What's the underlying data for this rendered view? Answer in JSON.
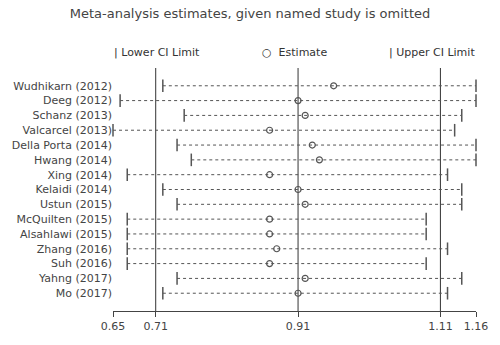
{
  "chart_data": {
    "type": "forest",
    "title": "Meta-analysis estimates, given named study is omitted",
    "categories": [
      "Wudhikarn (2012)",
      "Deeg (2012)",
      "Schanz (2013)",
      "Valcarcel (2013)",
      "Della Porta (2014)",
      "Hwang (2014)",
      "Xing (2014)",
      "Kelaidi (2014)",
      "Ustun (2015)",
      "McQuilten (2015)",
      "Alsahlawi (2015)",
      "Zhang (2016)",
      "Suh (2016)",
      "Yahng (2017)",
      "Mo (2017)"
    ],
    "values": [
      0.96,
      0.91,
      0.92,
      0.87,
      0.93,
      0.94,
      0.87,
      0.91,
      0.92,
      0.87,
      0.87,
      0.88,
      0.87,
      0.92,
      0.91
    ],
    "lower_ci": [
      0.72,
      0.66,
      0.75,
      0.65,
      0.74,
      0.76,
      0.67,
      0.72,
      0.74,
      0.67,
      0.67,
      0.67,
      0.67,
      0.74,
      0.72
    ],
    "upper_ci": [
      1.16,
      1.16,
      1.14,
      1.13,
      1.16,
      1.16,
      1.12,
      1.14,
      1.14,
      1.09,
      1.09,
      1.12,
      1.09,
      1.14,
      1.12
    ],
    "xlim": [
      0.65,
      1.16
    ],
    "xticks": [
      0.65,
      0.71,
      0.91,
      1.11,
      1.16
    ],
    "vlines": [
      0.71,
      0.91,
      1.11
    ],
    "color": "#555555",
    "marker": "open_circle",
    "grid": false,
    "annotations": [
      "| Lower CI Limit",
      "○  Estimate",
      "| Upper CI Limit"
    ]
  }
}
